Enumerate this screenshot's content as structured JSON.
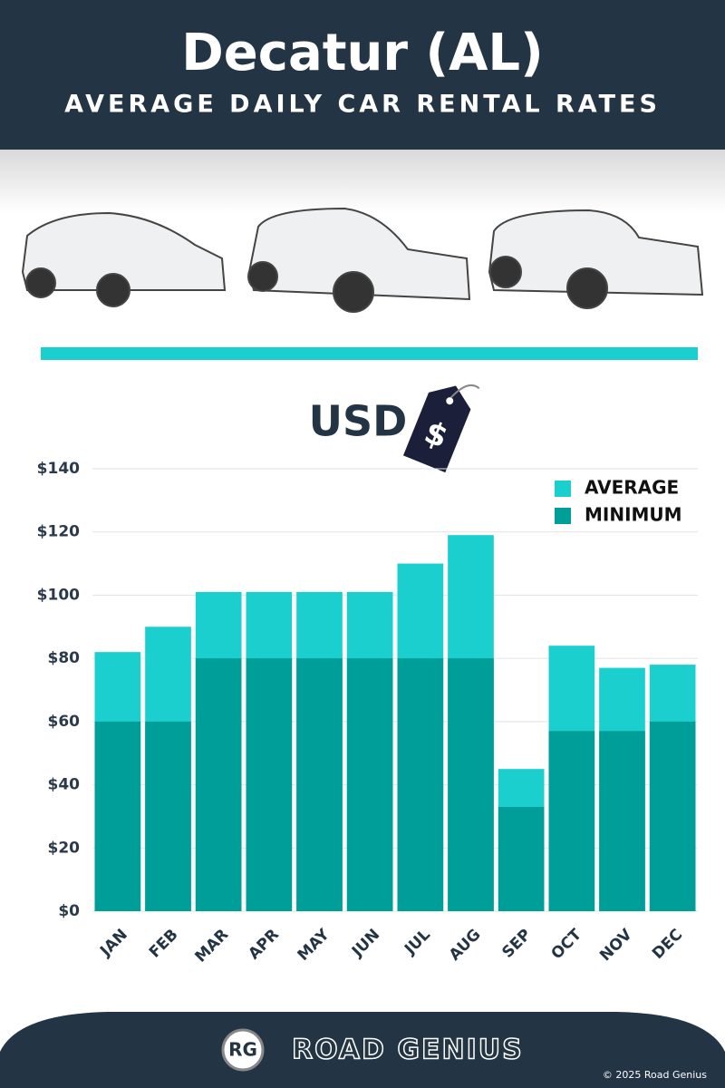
{
  "header": {
    "title": "Decatur (AL)",
    "subtitle": "AVERAGE DAILY CAR RENTAL RATES"
  },
  "currency": {
    "label": "USD",
    "symbol": "$"
  },
  "chart_data": {
    "type": "bar",
    "overlay": true,
    "categories": [
      "JAN",
      "FEB",
      "MAR",
      "APR",
      "MAY",
      "JUN",
      "JUL",
      "AUG",
      "SEP",
      "OCT",
      "NOV",
      "DEC"
    ],
    "series": [
      {
        "name": "AVERAGE",
        "color": "#1ccfcf",
        "values": [
          82,
          90,
          101,
          101,
          101,
          101,
          110,
          119,
          45,
          84,
          77,
          78
        ]
      },
      {
        "name": "MINIMUM",
        "color": "#009e99",
        "values": [
          60,
          60,
          80,
          80,
          80,
          80,
          80,
          80,
          33,
          57,
          57,
          60
        ]
      }
    ],
    "ylim": [
      0,
      140
    ],
    "yticks": [
      {
        "value": 0,
        "label": "$0"
      },
      {
        "value": 20,
        "label": "$20"
      },
      {
        "value": 40,
        "label": "$40"
      },
      {
        "value": 60,
        "label": "$60"
      },
      {
        "value": 80,
        "label": "$80"
      },
      {
        "value": 100,
        "label": "$100"
      },
      {
        "value": 120,
        "label": "$120"
      },
      {
        "value": 140,
        "label": "$140"
      }
    ],
    "grid": true,
    "legend": "top-right"
  },
  "footer": {
    "logo": "RG",
    "brand": "ROAD GENIUS",
    "copyright": "© 2025 Road Genius"
  }
}
